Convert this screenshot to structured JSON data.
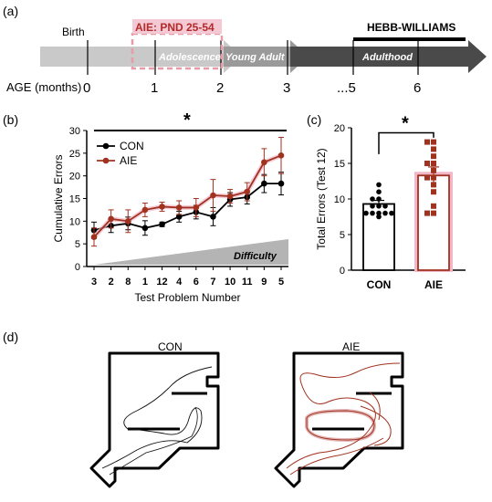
{
  "panel_a": {
    "panel_label": "(a)",
    "birth_label": "Birth",
    "aie_label": "AIE: PND 25-54",
    "hebb_label": "HEBB-WILLIAMS",
    "stages": [
      "Adolescence",
      "Young Adult",
      "Adulthood"
    ],
    "age_axis_label": "AGE (months)",
    "age_ticks": [
      "0",
      "1",
      "2",
      "3",
      "...5",
      "6"
    ]
  },
  "panel_b": {
    "panel_label": "(b)",
    "significance": "*",
    "difficulty_label": "Difficulty"
  },
  "panel_c": {
    "panel_label": "(c)",
    "significance": "*"
  },
  "panel_d": {
    "panel_label": "(d)",
    "con_title": "CON",
    "aie_title": "AIE"
  },
  "colors": {
    "con": "#000000",
    "aie": "#a0321f",
    "aie_light": "#f0b8c8",
    "arrow_light": "#c4c4c4",
    "arrow_dark": "#4a4a4a"
  },
  "chart_data": [
    {
      "type": "line",
      "xlabel": "Test Problem Number",
      "ylabel": "Cumulative Errors",
      "categories": [
        "3",
        "2",
        "8",
        "1",
        "12",
        "4",
        "6",
        "7",
        "10",
        "11",
        "9",
        "5"
      ],
      "ylim": [
        0,
        30
      ],
      "yticks": [
        "0",
        "5",
        "10",
        "15",
        "20",
        "25",
        "30"
      ],
      "legend_position": "top-left",
      "series": [
        {
          "name": "CON",
          "values": [
            8,
            9,
            9.5,
            8.5,
            9.3,
            11,
            12,
            11,
            14.8,
            15.3,
            18.3,
            18.3
          ],
          "errors": [
            1.8,
            1.5,
            1.4,
            1.6,
            0.5,
            1.2,
            1.5,
            2,
            1.5,
            1.5,
            2,
            2.5
          ]
        },
        {
          "name": "AIE",
          "values": [
            6.5,
            10.5,
            10,
            12.5,
            13.2,
            13,
            13,
            15.7,
            15.5,
            16.5,
            23,
            24.5
          ],
          "errors": [
            2,
            2,
            2.5,
            1.5,
            1,
            1.5,
            2,
            3.5,
            1.5,
            2,
            3,
            4
          ]
        }
      ]
    },
    {
      "type": "bar",
      "ylabel": "Total Errors (Test 12)",
      "categories": [
        "CON",
        "AIE"
      ],
      "values": [
        9.3,
        13.3
      ],
      "errors": [
        0.5,
        1.2
      ],
      "ylim": [
        0,
        20
      ],
      "yticks": [
        "0",
        "5",
        "10",
        "15",
        "20"
      ],
      "points": {
        "CON": [
          7.5,
          8,
          8,
          8,
          8,
          8,
          9,
          9,
          9,
          10,
          10,
          11,
          12
        ],
        "AIE": [
          8,
          8,
          9,
          11,
          12,
          13,
          13,
          14,
          15,
          15,
          16,
          17,
          18,
          18
        ]
      }
    }
  ]
}
